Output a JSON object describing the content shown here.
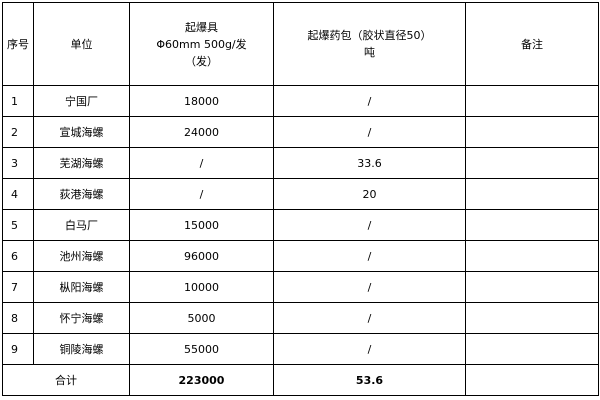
{
  "headers": {
    "seq": "序号",
    "unit": "单位",
    "detonator_line1": "起爆具",
    "detonator_line2": "Φ60mm 500g/发",
    "detonator_line3": "（发）",
    "charge_line1": "起爆药包（胶状直径50）",
    "charge_line2": "吨",
    "remark": "备注"
  },
  "rows": [
    {
      "seq": "1",
      "unit": "宁国厂",
      "detonator": "18000",
      "charge": "/",
      "remark": ""
    },
    {
      "seq": "2",
      "unit": "宣城海螺",
      "detonator": "24000",
      "charge": "/",
      "remark": ""
    },
    {
      "seq": "3",
      "unit": "芜湖海螺",
      "detonator": "/",
      "charge": "33.6",
      "remark": ""
    },
    {
      "seq": "4",
      "unit": "荻港海螺",
      "detonator": "/",
      "charge": "20",
      "remark": ""
    },
    {
      "seq": "5",
      "unit": "白马厂",
      "detonator": "15000",
      "charge": "/",
      "remark": ""
    },
    {
      "seq": "6",
      "unit": "池州海螺",
      "detonator": "96000",
      "charge": "/",
      "remark": ""
    },
    {
      "seq": "7",
      "unit": "枞阳海螺",
      "detonator": "10000",
      "charge": "/",
      "remark": ""
    },
    {
      "seq": "8",
      "unit": "怀宁海螺",
      "detonator": "5000",
      "charge": "/",
      "remark": ""
    },
    {
      "seq": "9",
      "unit": "铜陵海螺",
      "detonator": "55000",
      "charge": "/",
      "remark": ""
    }
  ],
  "total": {
    "label": "合计",
    "detonator": "223000",
    "charge": "53.6",
    "remark": ""
  }
}
